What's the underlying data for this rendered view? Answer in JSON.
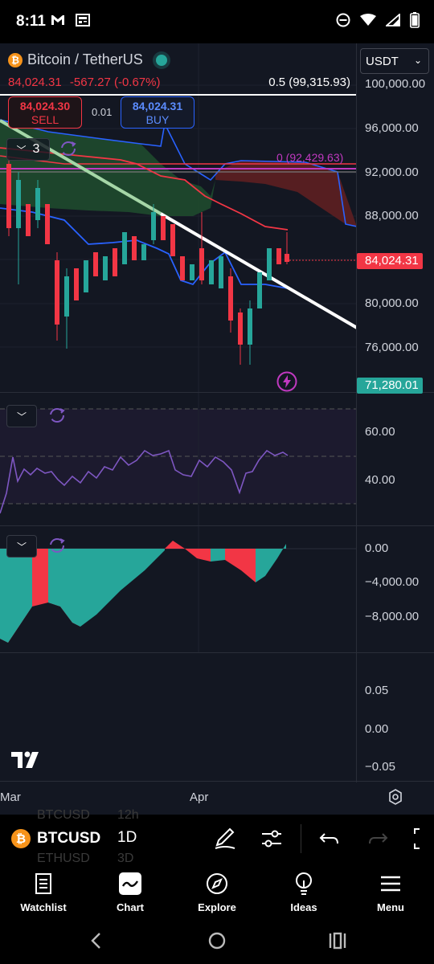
{
  "status_bar": {
    "time": "8:11"
  },
  "symbol": {
    "name": "Bitcoin / TetherUS",
    "price": "84,024.31",
    "change": "-567.27 (-0.67%)",
    "fib_label": "0.5 (99,315.93)",
    "fib_label_2": "0 (92,429.63)"
  },
  "trade": {
    "sell_price": "84,024.30",
    "sell_label": "SELL",
    "spread": "0.01",
    "buy_price": "84,024.31",
    "buy_label": "BUY"
  },
  "indicators_count": "3",
  "currency": "USDT",
  "price_scale": [
    "100,000.00",
    "96,000.00",
    "92,000.00",
    "88,000.00",
    "80,000.00",
    "76,000.00"
  ],
  "price_tags": {
    "last": "84,024.31",
    "low": "71,280.01"
  },
  "rsi_scale": [
    "60.00",
    "40.00"
  ],
  "macd_scale": [
    "0.00",
    "−4,000.00",
    "−8,000.00"
  ],
  "empty_scale": [
    "0.05",
    "0.00",
    "−0.05"
  ],
  "dates": {
    "mar": "Mar",
    "apr": "Apr"
  },
  "toolbar": {
    "symbol": "BTCUSD",
    "ghost_above": "BTCUSD",
    "ghost_below": "ETHUSD",
    "interval": "1D",
    "interval_above": "12h",
    "interval_below": "3D"
  },
  "nav": [
    {
      "label": "Watchlist"
    },
    {
      "label": "Chart"
    },
    {
      "label": "Explore"
    },
    {
      "label": "Ideas"
    },
    {
      "label": "Menu"
    }
  ],
  "colors": {
    "up": "#26a69a",
    "down": "#f23645",
    "rsi": "#7e57c2",
    "background": "#131722"
  }
}
